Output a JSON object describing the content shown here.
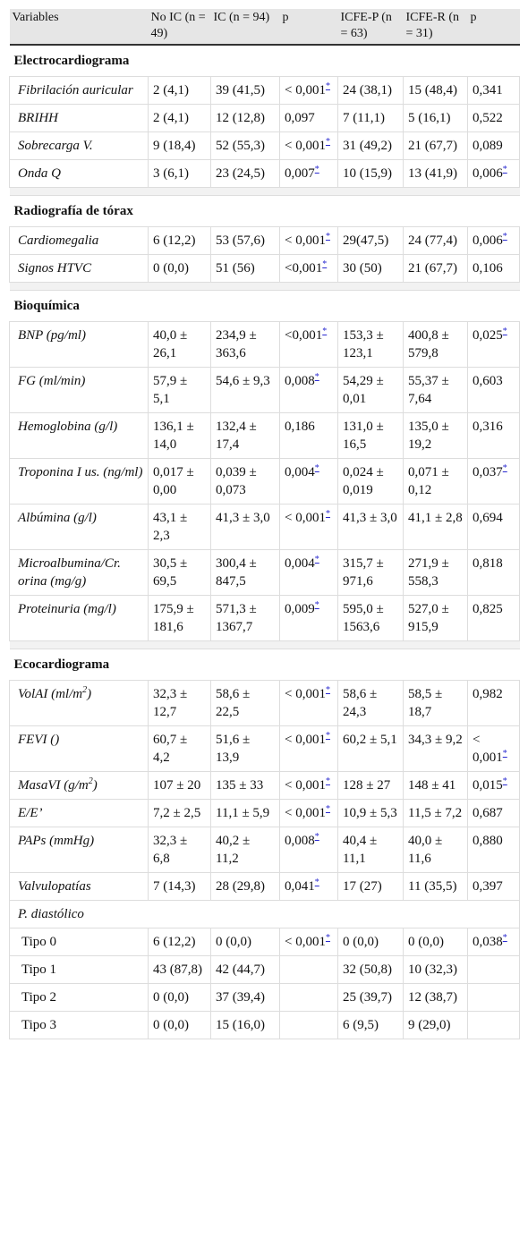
{
  "table": {
    "columns": [
      "Variables",
      "No IC (n = 49)",
      "IC (n = 94)",
      "p",
      "ICFE-P (n = 63)",
      "ICFE-R (n = 31)",
      "p"
    ],
    "sections": [
      {
        "title": "Electrocardiograma",
        "rows": [
          {
            "label": "Fibrilación auricular",
            "cells": [
              "2 (4,1)",
              "39 (41,5)",
              {
                "text": "< 0,001",
                "note": "*"
              },
              "24 (38,1)",
              "15 (48,4)",
              "0,341"
            ]
          },
          {
            "label": "BRIHH",
            "cells": [
              "2 (4,1)",
              "12 (12,8)",
              "0,097",
              "7 (11,1)",
              "5 (16,1)",
              "0,522"
            ]
          },
          {
            "label": "Sobrecarga V.",
            "cells": [
              "9 (18,4)",
              "52 (55,3)",
              {
                "text": "< 0,001",
                "note": "*"
              },
              "31 (49,2)",
              "21 (67,7)",
              "0,089"
            ]
          },
          {
            "label": "Onda Q",
            "cells": [
              "3 (6,1)",
              "23 (24,5)",
              {
                "text": "0,007",
                "note": "*"
              },
              "10 (15,9)",
              "13 (41,9)",
              {
                "text": "0,006",
                "note": "*"
              }
            ]
          }
        ]
      },
      {
        "title": "Radiografía de tórax",
        "rows": [
          {
            "label": "Cardiomegalia",
            "cells": [
              "6 (12,2)",
              "53 (57,6)",
              {
                "text": "< 0,001",
                "note": "*"
              },
              "29(47,5)",
              "24 (77,4)",
              {
                "text": "0,006",
                "note": "*"
              }
            ]
          },
          {
            "label": "Signos HTVC",
            "cells": [
              "0 (0,0)",
              "51 (56)",
              {
                "text": "<0,001",
                "note": "*"
              },
              "30 (50)",
              "21 (67,7)",
              "0,106"
            ]
          }
        ]
      },
      {
        "title": "Bioquímica",
        "rows": [
          {
            "label": "BNP (pg/ml)",
            "cells": [
              "40,0 ± 26,1",
              "234,9 ± 363,6",
              {
                "text": "<0,001",
                "note": "*"
              },
              "153,3 ± 123,1",
              "400,8 ± 579,8",
              {
                "text": "0,025",
                "note": "*"
              }
            ]
          },
          {
            "label": "FG (ml/min)",
            "cells": [
              "57,9 ± 5,1",
              "54,6 ± 9,3",
              {
                "text": "0,008",
                "note": "*"
              },
              "54,29 ± 0,01",
              "55,37 ± 7,64",
              "0,603"
            ]
          },
          {
            "label": "Hemoglobina (g/l)",
            "cells": [
              "136,1 ± 14,0",
              "132,4 ± 17,4",
              "0,186",
              "131,0 ± 16,5",
              "135,0 ± 19,2",
              "0,316"
            ]
          },
          {
            "label": "Troponina I us. (ng/ml)",
            "cells": [
              "0,017 ± 0,00",
              "0,039 ± 0,073",
              {
                "text": "0,004",
                "note": "*"
              },
              "0,024 ± 0,019",
              "0,071 ± 0,12",
              {
                "text": "0,037",
                "note": "*"
              }
            ]
          },
          {
            "label": "Albúmina (g/l)",
            "cells": [
              "43,1 ± 2,3",
              "41,3 ± 3,0",
              {
                "text": "< 0,001",
                "note": "*"
              },
              "41,3 ± 3,0",
              "41,1 ± 2,8",
              "0,694"
            ]
          },
          {
            "label": "Microalbumina/Cr. orina (mg/g)",
            "cells": [
              "30,5 ± 69,5",
              "300,4 ± 847,5",
              {
                "text": "0,004",
                "note": "*"
              },
              "315,7 ± 971,6",
              "271,9 ± 558,3",
              "0,818"
            ]
          },
          {
            "label": "Proteinuria (mg/l)",
            "cells": [
              "175,9 ± 181,6",
              "571,3 ± 1367,7",
              {
                "text": "0,009",
                "note": "*"
              },
              "595,0 ± 1563,6",
              "527,0 ± 915,9",
              "0,825"
            ]
          }
        ]
      },
      {
        "title": "Ecocardiograma",
        "rows": [
          {
            "label": {
              "text": "VolAI (ml/m",
              "superscript": "2",
              "after": ")"
            },
            "cells": [
              "32,3 ± 12,7",
              "58,6 ± 22,5",
              {
                "text": "< 0,001",
                "note": "*"
              },
              "58,6 ± 24,3",
              "58,5 ± 18,7",
              "0,982"
            ]
          },
          {
            "label": "FEVI ()",
            "cells": [
              "60,7 ± 4,2",
              "51,6 ± 13,9",
              {
                "text": "< 0,001",
                "note": "*"
              },
              "60,2 ± 5,1",
              "34,3 ± 9,2",
              {
                "text": "< 0,001",
                "note": "*"
              }
            ]
          },
          {
            "label": {
              "text": "MasaVI (g/m",
              "superscript": "2",
              "after": ")"
            },
            "cells": [
              "107 ± 20",
              "135 ± 33",
              {
                "text": "< 0,001",
                "note": "*"
              },
              "128 ± 27",
              "148 ± 41",
              {
                "text": "0,015",
                "note": "*"
              }
            ]
          },
          {
            "label": "E/E’",
            "cells": [
              "7,2 ± 2,5",
              "11,1 ± 5,9",
              {
                "text": "< 0,001",
                "note": "*"
              },
              "10,9 ± 5,3",
              "11,5 ± 7,2",
              "0,687"
            ]
          },
          {
            "label": "PAPs (mmHg)",
            "cells": [
              "32,3 ± 6,8",
              "40,2 ± 11,2",
              {
                "text": "0,008",
                "note": "*"
              },
              "40,4 ± 11,1",
              "40,0 ± 11,6",
              "0,880"
            ]
          },
          {
            "label": "Valvulopatías",
            "cells": [
              "7 (14,3)",
              "28 (29,8)",
              {
                "text": "0,041",
                "note": "*"
              },
              "17 (27)",
              "11 (35,5)",
              "0,397"
            ]
          },
          {
            "label": "P. diastólico",
            "rows": [
              {
                "label": "Tipo 0",
                "cells": [
                  "6 (12,2)",
                  "0 (0,0)",
                  {
                    "text": "< 0,001",
                    "note": "*"
                  },
                  "0 (0,0)",
                  "0 (0,0)",
                  {
                    "text": "0,038",
                    "note": "*"
                  }
                ]
              },
              {
                "label": "Tipo 1",
                "cells": [
                  "43 (87,8)",
                  "42 (44,7)",
                  null,
                  "32 (50,8)",
                  "10 (32,3)",
                  null
                ]
              },
              {
                "label": "Tipo 2",
                "cells": [
                  "0 (0,0)",
                  "37 (39,4)",
                  null,
                  "25 (39,7)",
                  "12 (38,7)",
                  null
                ]
              },
              {
                "label": "Tipo 3",
                "cells": [
                  "0 (0,0)",
                  "15 (16,0)",
                  null,
                  "6 (9,5)",
                  "9 (29,0)",
                  null
                ]
              }
            ]
          }
        ]
      }
    ]
  }
}
